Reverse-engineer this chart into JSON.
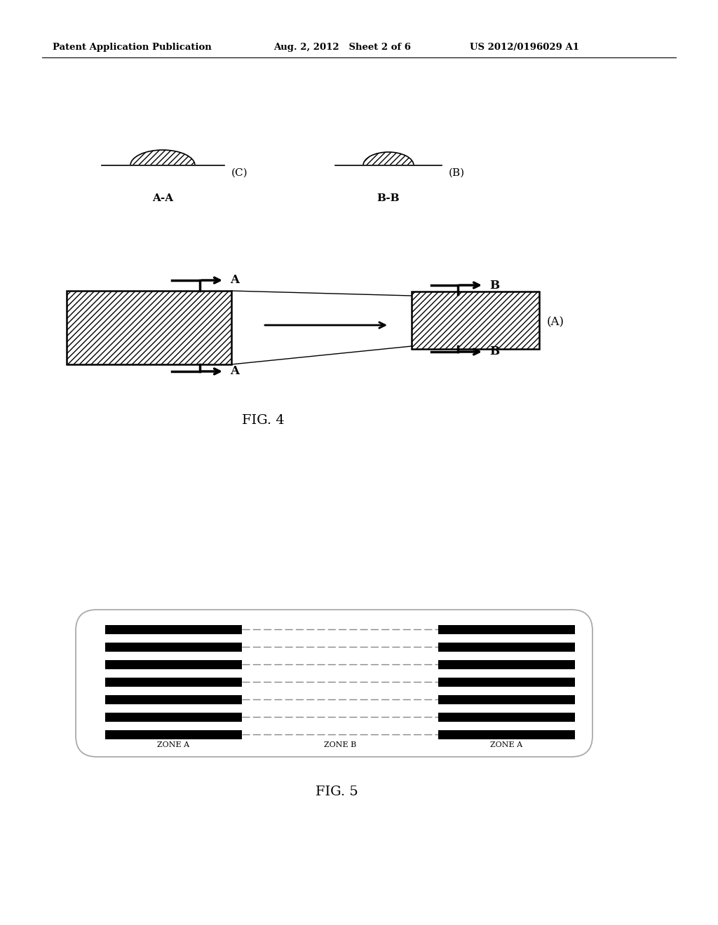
{
  "header_left": "Patent Application Publication",
  "header_mid": "Aug. 2, 2012   Sheet 2 of 6",
  "header_right": "US 2012/0196029 A1",
  "fig4_label": "FIG. 4",
  "fig5_label": "FIG. 5",
  "background_color": "#ffffff",
  "text_color": "#000000"
}
